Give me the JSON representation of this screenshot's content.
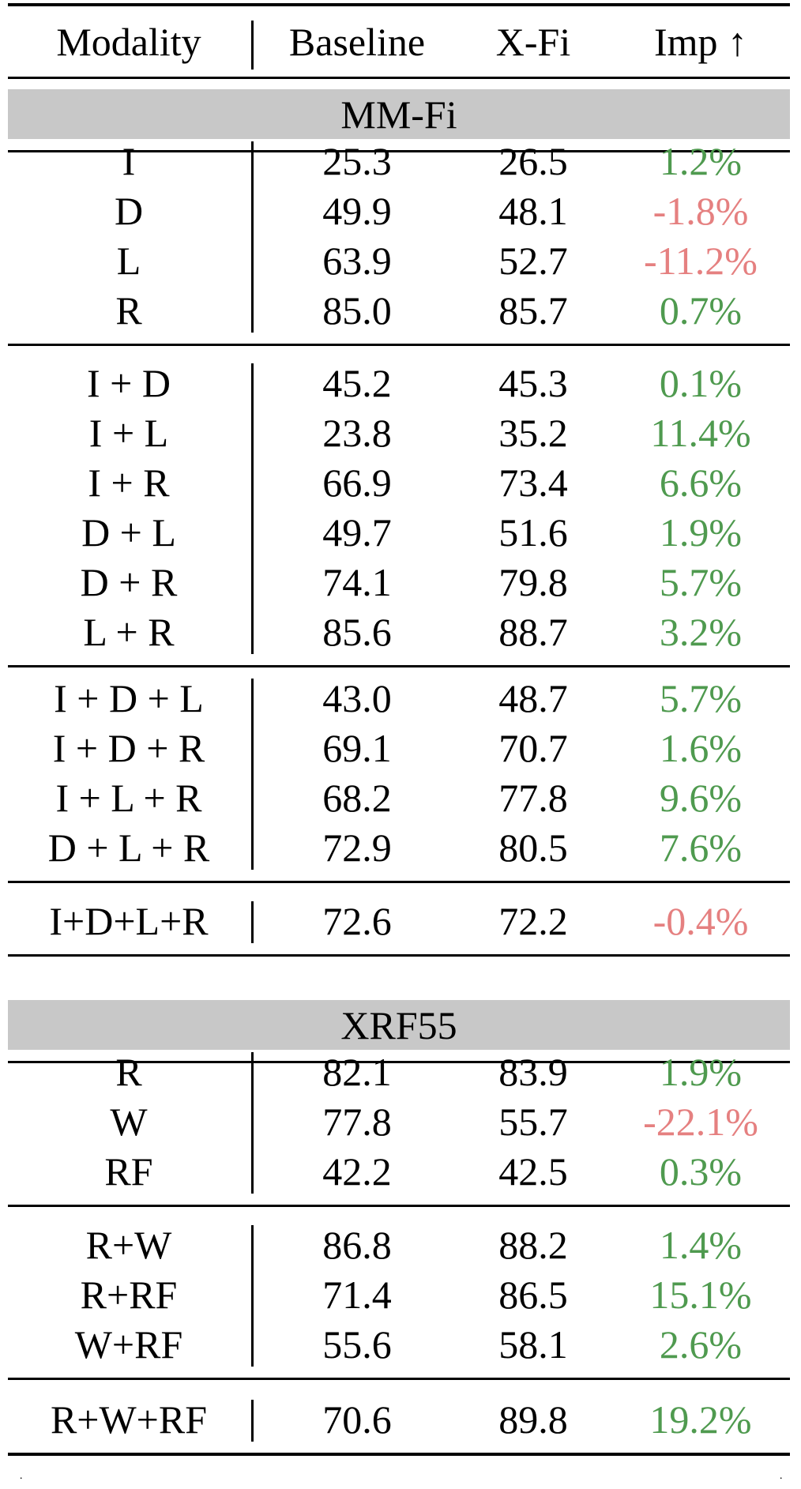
{
  "header": {
    "modality": "Modality",
    "baseline": "Baseline",
    "xfi": "X-Fi",
    "imp": "Imp ↑"
  },
  "sections": [
    {
      "name": "MM-Fi",
      "groups": [
        [
          {
            "modality": "I",
            "baseline": "25.3",
            "xfi": "26.5",
            "imp": "1.2%",
            "sign": "pos"
          },
          {
            "modality": "D",
            "baseline": "49.9",
            "xfi": "48.1",
            "imp": "-1.8%",
            "sign": "neg"
          },
          {
            "modality": "L",
            "baseline": "63.9",
            "xfi": "52.7",
            "imp": "-11.2%",
            "sign": "neg"
          },
          {
            "modality": "R",
            "baseline": "85.0",
            "xfi": "85.7",
            "imp": "0.7%",
            "sign": "pos"
          }
        ],
        [
          {
            "modality": "I + D",
            "baseline": "45.2",
            "xfi": "45.3",
            "imp": "0.1%",
            "sign": "pos"
          },
          {
            "modality": "I + L",
            "baseline": "23.8",
            "xfi": "35.2",
            "imp": "11.4%",
            "sign": "pos"
          },
          {
            "modality": "I + R",
            "baseline": "66.9",
            "xfi": "73.4",
            "imp": "6.6%",
            "sign": "pos"
          },
          {
            "modality": "D + L",
            "baseline": "49.7",
            "xfi": "51.6",
            "imp": "1.9%",
            "sign": "pos"
          },
          {
            "modality": "D + R",
            "baseline": "74.1",
            "xfi": "79.8",
            "imp": "5.7%",
            "sign": "pos"
          },
          {
            "modality": "L + R",
            "baseline": "85.6",
            "xfi": "88.7",
            "imp": "3.2%",
            "sign": "pos"
          }
        ],
        [
          {
            "modality": "I + D + L",
            "baseline": "43.0",
            "xfi": "48.7",
            "imp": "5.7%",
            "sign": "pos"
          },
          {
            "modality": "I + D + R",
            "baseline": "69.1",
            "xfi": "70.7",
            "imp": "1.6%",
            "sign": "pos"
          },
          {
            "modality": "I + L + R",
            "baseline": "68.2",
            "xfi": "77.8",
            "imp": "9.6%",
            "sign": "pos"
          },
          {
            "modality": "D + L + R",
            "baseline": "72.9",
            "xfi": "80.5",
            "imp": "7.6%",
            "sign": "pos"
          }
        ],
        [
          {
            "modality": "I+D+L+R",
            "baseline": "72.6",
            "xfi": "72.2",
            "imp": "-0.4%",
            "sign": "neg"
          }
        ]
      ]
    },
    {
      "name": "XRF55",
      "groups": [
        [
          {
            "modality": "R",
            "baseline": "82.1",
            "xfi": "83.9",
            "imp": "1.9%",
            "sign": "pos"
          },
          {
            "modality": "W",
            "baseline": "77.8",
            "xfi": "55.7",
            "imp": "-22.1%",
            "sign": "neg"
          },
          {
            "modality": "RF",
            "baseline": "42.2",
            "xfi": "42.5",
            "imp": "0.3%",
            "sign": "pos"
          }
        ],
        [
          {
            "modality": "R+W",
            "baseline": "86.8",
            "xfi": "88.2",
            "imp": "1.4%",
            "sign": "pos"
          },
          {
            "modality": "R+RF",
            "baseline": "71.4",
            "xfi": "86.5",
            "imp": "15.1%",
            "sign": "pos"
          },
          {
            "modality": "W+RF",
            "baseline": "55.6",
            "xfi": "58.1",
            "imp": "2.6%",
            "sign": "pos"
          }
        ],
        [
          {
            "modality": "R+W+RF",
            "baseline": "70.6",
            "xfi": "89.8",
            "imp": "19.2%",
            "sign": "pos"
          }
        ]
      ]
    }
  ],
  "colors": {
    "positive": "#4f9a4f",
    "negative": "#e58080",
    "section_band": "#c8c8c8"
  }
}
